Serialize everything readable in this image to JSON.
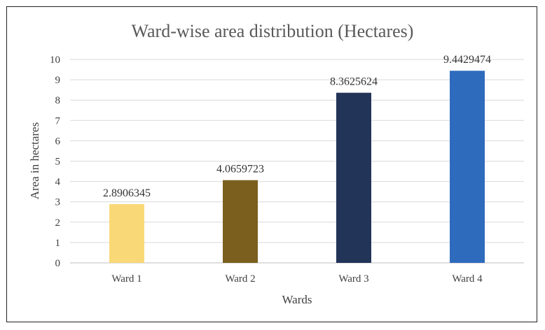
{
  "chart_data": {
    "type": "bar",
    "title": "Ward-wise area distribution (Hectares)",
    "xlabel": "Wards",
    "ylabel": "Area in hectares",
    "categories": [
      "Ward 1",
      "Ward 2",
      "Ward 3",
      "Ward 4"
    ],
    "values": [
      2.8906345,
      4.0659723,
      8.3625624,
      9.4429474
    ],
    "data_labels": [
      "2.8906345",
      "4.0659723",
      "8.3625624",
      "9.4429474"
    ],
    "bar_colors": [
      "#f9d977",
      "#7a5f1e",
      "#233459",
      "#2e6bbd"
    ],
    "ylim": [
      0,
      10
    ],
    "yticks": [
      0,
      1,
      2,
      3,
      4,
      5,
      6,
      7,
      8,
      9,
      10
    ],
    "grid": true,
    "legend": "none"
  }
}
